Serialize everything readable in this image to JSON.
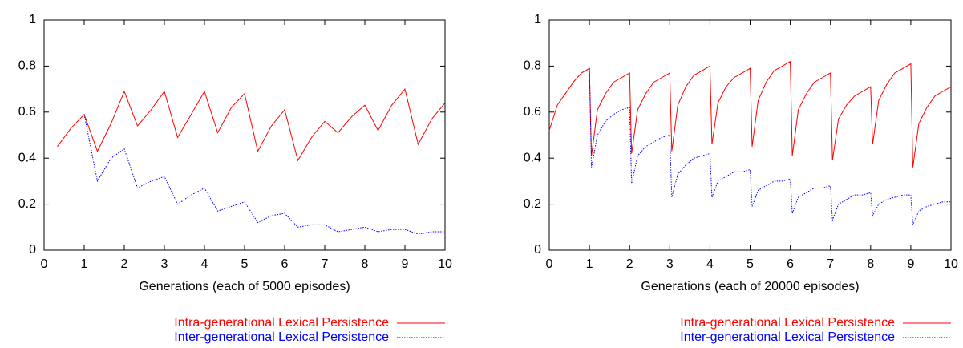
{
  "chart_data": [
    {
      "type": "line",
      "xlabel": "Generations (each of 5000 episodes)",
      "x": [
        0.33,
        0.67,
        1,
        1.33,
        1.67,
        2,
        2.33,
        2.67,
        3,
        3.33,
        3.67,
        4,
        4.33,
        4.67,
        5,
        5.33,
        5.67,
        6,
        6.33,
        6.67,
        7,
        7.33,
        7.67,
        8,
        8.33,
        8.67,
        9,
        9.33,
        9.67,
        10
      ],
      "series": [
        {
          "name": "Intra-generational Lexical Persistence",
          "color": "#ff0000",
          "dash": false,
          "values": [
            0.45,
            0.53,
            0.59,
            0.43,
            0.55,
            0.69,
            0.54,
            0.61,
            0.69,
            0.49,
            0.59,
            0.69,
            0.51,
            0.62,
            0.68,
            0.43,
            0.54,
            0.61,
            0.39,
            0.49,
            0.56,
            0.51,
            0.58,
            0.63,
            0.52,
            0.63,
            0.7,
            0.46,
            0.57,
            0.64
          ]
        },
        {
          "name": "Inter-generational Lexical Persistence",
          "color": "#0000ff",
          "dash": true,
          "values": [
            null,
            null,
            0.59,
            0.3,
            0.4,
            0.44,
            0.27,
            0.3,
            0.32,
            0.2,
            0.24,
            0.27,
            0.17,
            0.19,
            0.21,
            0.12,
            0.15,
            0.16,
            0.1,
            0.11,
            0.11,
            0.08,
            0.09,
            0.1,
            0.08,
            0.09,
            0.09,
            0.07,
            0.08,
            0.08
          ]
        }
      ],
      "xlim": [
        0,
        10
      ],
      "xticks": [
        0,
        1,
        2,
        3,
        4,
        5,
        6,
        7,
        8,
        9,
        10
      ],
      "ylim": [
        0,
        1
      ],
      "yticks": [
        0,
        0.2,
        0.4,
        0.6,
        0.8,
        1
      ],
      "legend": "bottom"
    },
    {
      "type": "line",
      "xlabel": "Generations (each of 20000 episodes)",
      "x": [
        0,
        0.2,
        0.4,
        0.6,
        0.8,
        1,
        1.05,
        1.2,
        1.4,
        1.6,
        1.8,
        2,
        2.05,
        2.2,
        2.4,
        2.6,
        2.8,
        3,
        3.05,
        3.2,
        3.4,
        3.6,
        3.8,
        4,
        4.05,
        4.2,
        4.4,
        4.6,
        4.8,
        5,
        5.05,
        5.2,
        5.4,
        5.6,
        5.8,
        6,
        6.05,
        6.2,
        6.4,
        6.6,
        6.8,
        7,
        7.05,
        7.2,
        7.4,
        7.6,
        7.8,
        8,
        8.05,
        8.2,
        8.4,
        8.6,
        8.8,
        9,
        9.05,
        9.2,
        9.4,
        9.6,
        9.8,
        10
      ],
      "series": [
        {
          "name": "Intra-generational Lexical Persistence",
          "color": "#ff0000",
          "dash": false,
          "values": [
            0.52,
            0.63,
            0.68,
            0.73,
            0.77,
            0.79,
            0.41,
            0.61,
            0.68,
            0.73,
            0.75,
            0.77,
            0.42,
            0.61,
            0.68,
            0.73,
            0.75,
            0.77,
            0.43,
            0.63,
            0.71,
            0.76,
            0.78,
            0.8,
            0.46,
            0.64,
            0.71,
            0.75,
            0.77,
            0.79,
            0.45,
            0.65,
            0.73,
            0.78,
            0.8,
            0.82,
            0.41,
            0.61,
            0.68,
            0.73,
            0.75,
            0.77,
            0.39,
            0.57,
            0.63,
            0.67,
            0.69,
            0.71,
            0.46,
            0.65,
            0.72,
            0.77,
            0.79,
            0.81,
            0.36,
            0.55,
            0.62,
            0.67,
            0.69,
            0.71
          ]
        },
        {
          "name": "Inter-generational Lexical Persistence",
          "color": "#0000ff",
          "dash": true,
          "values": [
            null,
            null,
            null,
            null,
            null,
            0.79,
            0.36,
            0.5,
            0.56,
            0.59,
            0.61,
            0.62,
            0.29,
            0.41,
            0.45,
            0.47,
            0.49,
            0.5,
            0.23,
            0.33,
            0.37,
            0.4,
            0.41,
            0.42,
            0.23,
            0.3,
            0.32,
            0.34,
            0.34,
            0.35,
            0.19,
            0.26,
            0.28,
            0.3,
            0.3,
            0.31,
            0.16,
            0.23,
            0.25,
            0.27,
            0.27,
            0.28,
            0.13,
            0.2,
            0.22,
            0.24,
            0.24,
            0.25,
            0.15,
            0.2,
            0.22,
            0.23,
            0.24,
            0.24,
            0.11,
            0.17,
            0.19,
            0.2,
            0.21,
            0.21
          ]
        }
      ],
      "xlim": [
        0,
        10
      ],
      "xticks": [
        0,
        1,
        2,
        3,
        4,
        5,
        6,
        7,
        8,
        9,
        10
      ],
      "ylim": [
        0,
        1
      ],
      "yticks": [
        0,
        0.2,
        0.4,
        0.6,
        0.8,
        1
      ],
      "legend": "bottom"
    }
  ]
}
